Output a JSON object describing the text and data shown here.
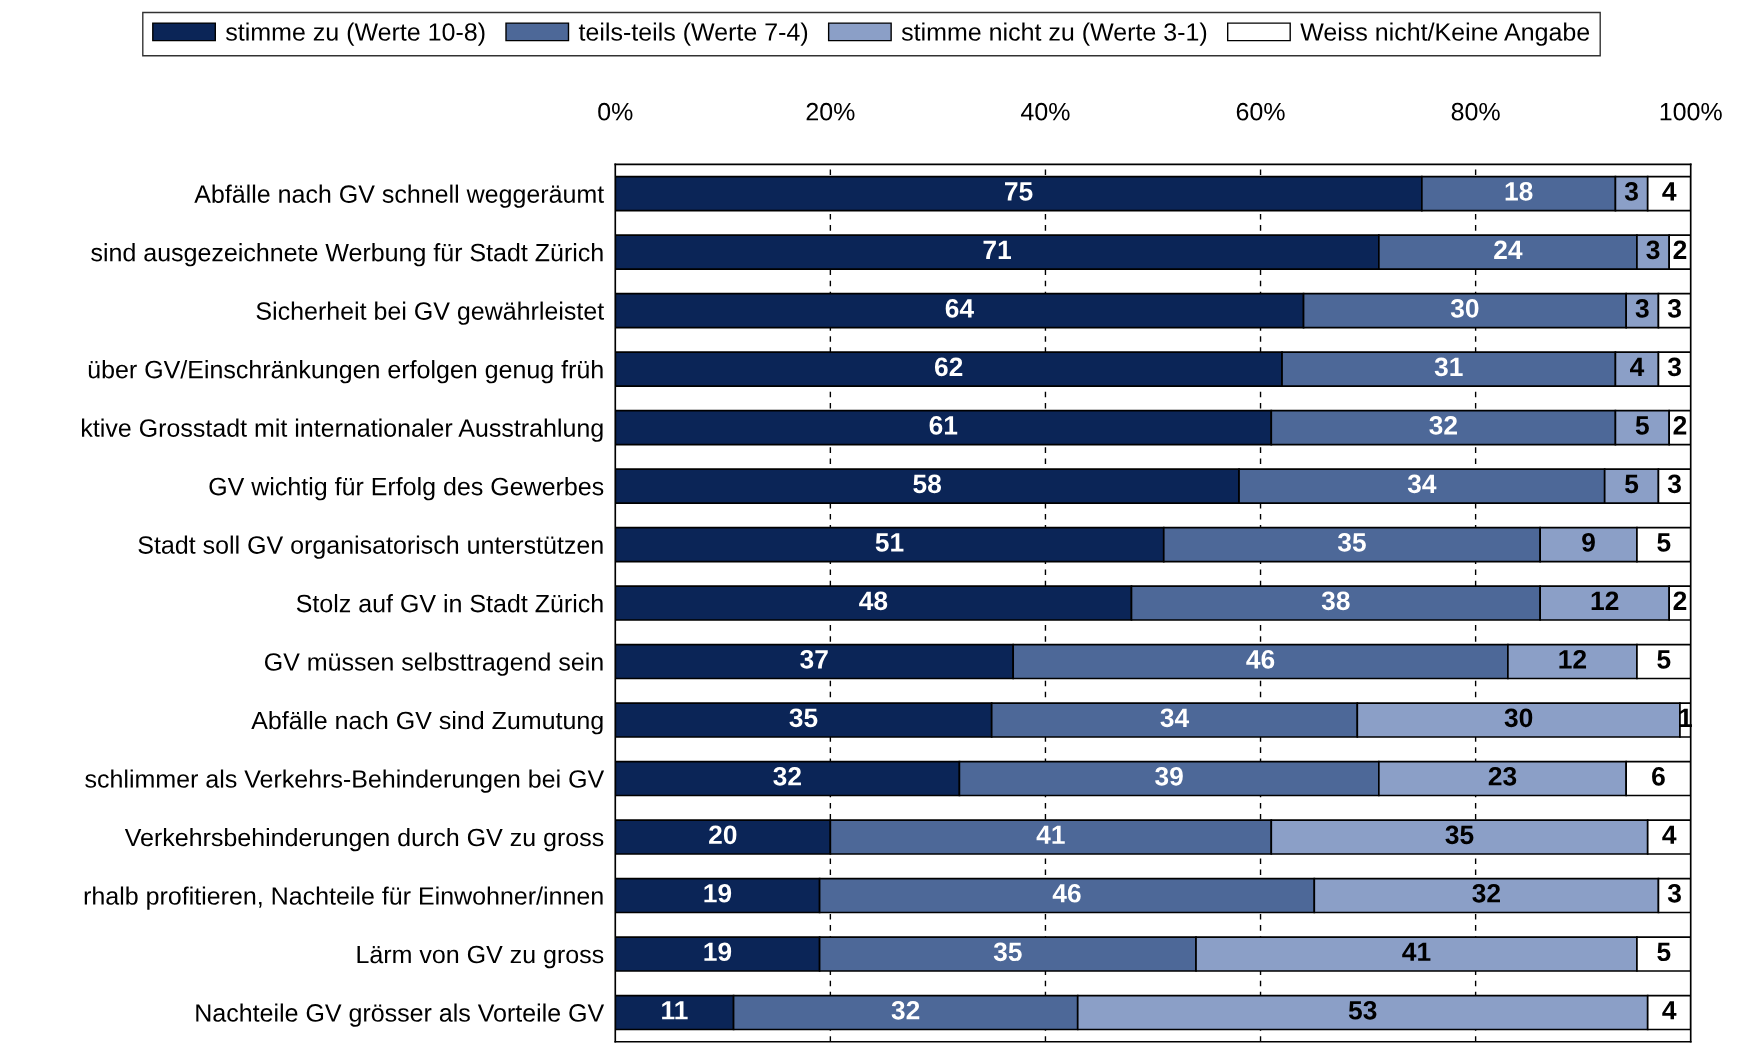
{
  "chart_data": {
    "type": "bar",
    "orientation": "horizontal",
    "stacked": true,
    "data_labels": true,
    "grid": "x",
    "legend": "top",
    "categories": [
      "Abfälle nach GV schnell weggeräumt",
      "sind ausgezeichnete Werbung für Stadt Zürich",
      "Sicherheit bei GV gewährleistet",
      "über GV/Einschränkungen erfolgen genug früh",
      "ktive Grosstadt mit internationaler Ausstrahlung",
      "GV wichtig für Erfolg des Gewerbes",
      "Stadt soll GV organisatorisch unterstützen",
      "Stolz auf GV in Stadt Zürich",
      "GV müssen selbsttragend sein",
      "Abfälle nach GV sind Zumutung",
      "schlimmer als Verkehrs-Behinderungen bei GV",
      "Verkehrsbehinderungen durch GV zu gross",
      "rhalb profitieren, Nachteile für Einwohner/innen",
      "Lärm von GV zu gross",
      "Nachteile GV grösser als Vorteile GV"
    ],
    "series": [
      {
        "name": "stimme zu (Werte 10-8)",
        "color": "#0b2557",
        "values": [
          75,
          71,
          64,
          62,
          61,
          58,
          51,
          48,
          37,
          35,
          32,
          20,
          19,
          19,
          11
        ]
      },
      {
        "name": "teils-teils (Werte 7-4)",
        "color": "#4d6898",
        "values": [
          18,
          24,
          30,
          31,
          32,
          34,
          35,
          38,
          46,
          34,
          39,
          41,
          46,
          35,
          32
        ]
      },
      {
        "name": "stimme nicht zu (Werte 3-1)",
        "color": "#8b9fc7",
        "values": [
          3,
          3,
          3,
          4,
          5,
          5,
          9,
          12,
          12,
          30,
          23,
          35,
          32,
          41,
          53
        ]
      },
      {
        "name": "Weiss nicht/Keine Angabe",
        "color": "#ffffff",
        "values": [
          4,
          2,
          3,
          3,
          2,
          3,
          5,
          2,
          5,
          1,
          6,
          4,
          3,
          5,
          4
        ]
      }
    ],
    "xlim": [
      0,
      100
    ],
    "xticks": [
      {
        "value": 0,
        "label": "0%"
      },
      {
        "value": 20,
        "label": "20%"
      },
      {
        "value": 40,
        "label": "40%"
      },
      {
        "value": 60,
        "label": "60%"
      },
      {
        "value": 80,
        "label": "80%"
      },
      {
        "value": 100,
        "label": "100%"
      }
    ]
  }
}
